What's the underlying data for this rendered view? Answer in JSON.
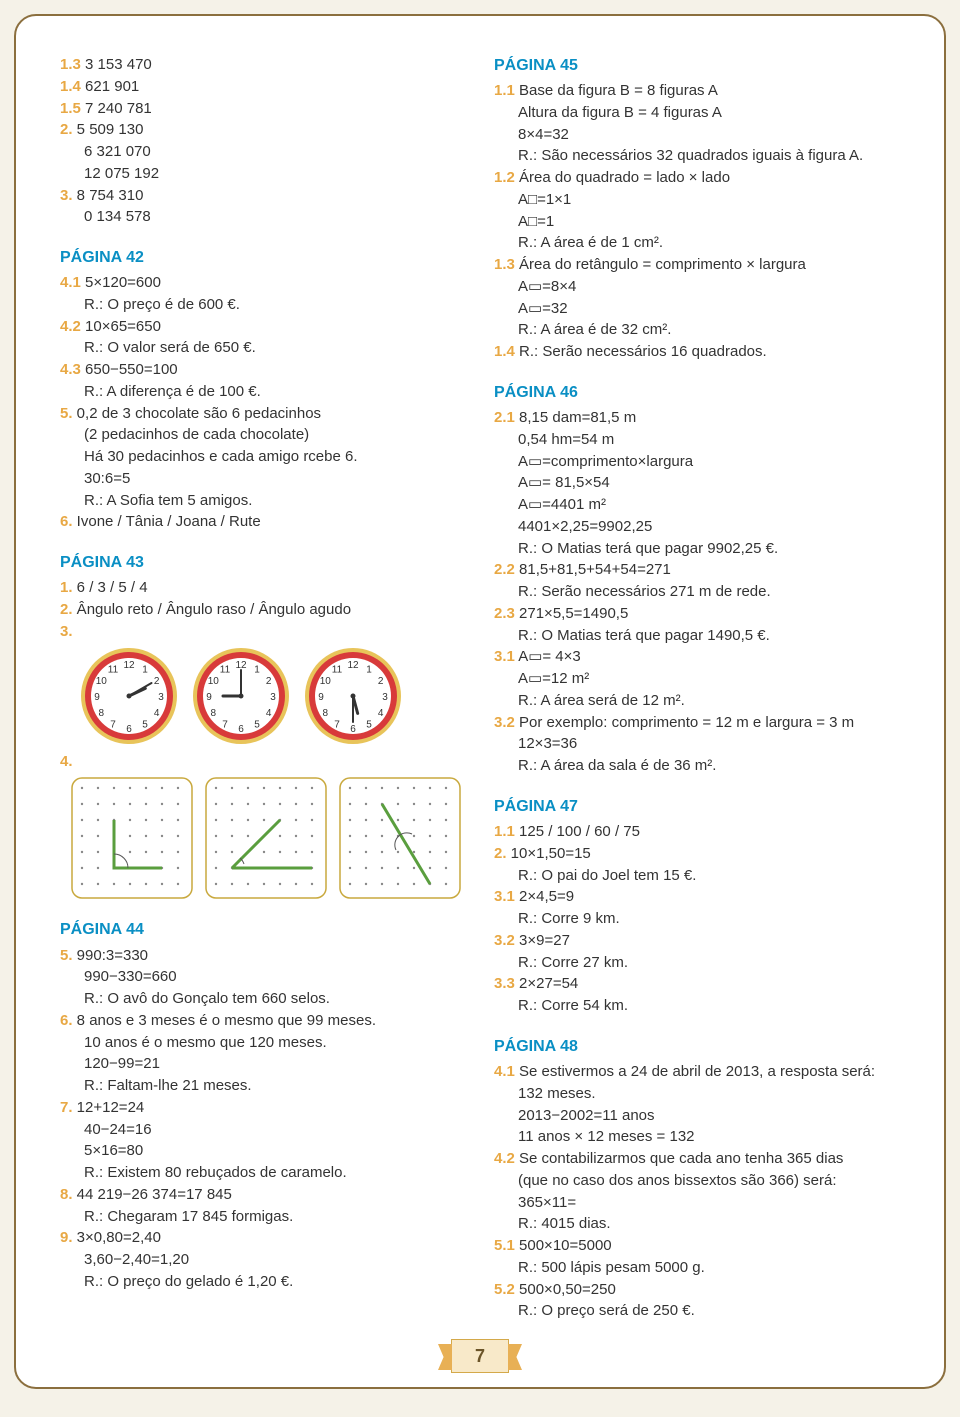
{
  "pageNumber": "7",
  "colors": {
    "accent": "#e8a844",
    "heading": "#0a8fc4",
    "text": "#333333",
    "border": "#8b6f3e",
    "bg": "#ffffff",
    "clockRim": "#e8c45a",
    "clockRing": "#d83a3a",
    "clockFace": "#ffffff",
    "clockHand": "#333333",
    "gridBorder": "#c9a93e",
    "gridDot": "#888888",
    "angleLine": "#5a9e3e",
    "angleArc": "#555555"
  },
  "left": {
    "top": [
      {
        "n": "1.3",
        "t": "3 153 470"
      },
      {
        "n": "1.4",
        "t": "621 901"
      },
      {
        "n": "1.5",
        "t": "7 240 781"
      },
      {
        "n": "2.",
        "t": "5 509 130"
      },
      {
        "sub": "6 321 070"
      },
      {
        "sub": "12 075 192"
      },
      {
        "n": "3.",
        "t": "8 754 310"
      },
      {
        "sub": "0 134 578"
      }
    ],
    "p42": {
      "title": "PÁGINA 42",
      "items": [
        {
          "n": "4.1",
          "t": "5×120=600"
        },
        {
          "sub": "R.: O preço é de 600 €."
        },
        {
          "n": "4.2",
          "t": "10×65=650"
        },
        {
          "sub": "R.: O valor será de 650 €."
        },
        {
          "n": "4.3",
          "t": "650−550=100"
        },
        {
          "sub": "R.: A diferença é de 100 €."
        },
        {
          "n": "5.",
          "t": "0,2 de 3 chocolate são 6 pedacinhos"
        },
        {
          "sub": "(2 pedacinhos de cada chocolate)"
        },
        {
          "sub": "Há 30 pedacinhos e cada amigo rcebe 6."
        },
        {
          "sub": "30:6=5"
        },
        {
          "sub": "R.: A Sofia tem 5 amigos."
        },
        {
          "n": "6.",
          "t": "Ivone / Tânia / Joana / Rute"
        }
      ]
    },
    "p43": {
      "title": "PÁGINA 43",
      "items": [
        {
          "n": "1.",
          "t": "6 / 3 / 5 / 4"
        },
        {
          "n": "2.",
          "t": "Ângulo reto / Ângulo raso / Ângulo agudo"
        },
        {
          "n": "3.",
          "t": ""
        }
      ],
      "after": [
        {
          "n": "4.",
          "t": ""
        }
      ]
    },
    "clocks": [
      {
        "hour": 2,
        "min": 10
      },
      {
        "hour": 9,
        "min": 0
      },
      {
        "hour": 5,
        "min": 30
      }
    ],
    "grids": [
      {
        "type": "right",
        "pts": [
          [
            2,
            2
          ],
          [
            2,
            5
          ],
          [
            5,
            5
          ]
        ],
        "arc": [
          2,
          5,
          90,
          0
        ]
      },
      {
        "type": "acute",
        "pts": [
          [
            1,
            5
          ],
          [
            4,
            2
          ],
          [
            4,
            2
          ],
          [
            6,
            5
          ]
        ],
        "arc": [
          4,
          2,
          135,
          45
        ],
        "corner": [
          1,
          5
        ]
      },
      {
        "type": "line",
        "pts": [
          [
            2,
            1
          ],
          [
            5,
            6
          ]
        ],
        "arc": [
          3.5,
          3.5,
          110,
          290
        ]
      }
    ],
    "p44": {
      "title": "PÁGINA 44",
      "items": [
        {
          "n": "5.",
          "t": "990:3=330"
        },
        {
          "sub": "990−330=660"
        },
        {
          "sub": "R.: O avô do Gonçalo tem 660 selos."
        },
        {
          "n": "6.",
          "t": "8 anos e 3 meses é o mesmo que 99 meses."
        },
        {
          "sub": "10 anos é o mesmo que 120 meses."
        },
        {
          "sub": "120−99=21"
        },
        {
          "sub": "R.: Faltam-lhe 21 meses."
        },
        {
          "n": "7.",
          "t": "12+12=24"
        },
        {
          "sub": "40−24=16"
        },
        {
          "sub": "5×16=80"
        },
        {
          "sub": "R.: Existem 80 rebuçados de caramelo."
        },
        {
          "n": "8.",
          "t": "44 219−26 374=17 845"
        },
        {
          "sub": "R.: Chegaram 17 845 formigas."
        },
        {
          "n": "9.",
          "t": "3×0,80=2,40"
        },
        {
          "sub": "3,60−2,40=1,20"
        },
        {
          "sub": "R.: O preço do gelado é 1,20 €."
        }
      ]
    }
  },
  "right": {
    "p45": {
      "title": "PÁGINA 45",
      "items": [
        {
          "n": "1.1",
          "t": "Base da figura B = 8 figuras A"
        },
        {
          "sub": "Altura da figura B = 4 figuras A"
        },
        {
          "sub": "8×4=32"
        },
        {
          "sub": "R.: São necessários 32 quadrados iguais à figura A."
        },
        {
          "n": "1.2",
          "t": "Área do quadrado = lado × lado"
        },
        {
          "sub": "A□=1×1"
        },
        {
          "sub": "A□=1"
        },
        {
          "sub": "R.: A área é de 1 cm²."
        },
        {
          "n": "1.3",
          "t": "Área do retângulo = comprimento × largura"
        },
        {
          "sub": "A▭=8×4"
        },
        {
          "sub": "A▭=32"
        },
        {
          "sub": "R.: A área é de 32 cm²."
        },
        {
          "n": "1.4",
          "t": "R.: Serão necessários 16 quadrados."
        }
      ]
    },
    "p46": {
      "title": "PÁGINA 46",
      "items": [
        {
          "n": "2.1",
          "t": "8,15 dam=81,5 m"
        },
        {
          "sub": "0,54 hm=54 m"
        },
        {
          "sub": "A▭=comprimento×largura"
        },
        {
          "sub": "A▭= 81,5×54"
        },
        {
          "sub": "A▭=4401 m²"
        },
        {
          "sub": "4401×2,25=9902,25"
        },
        {
          "sub": "R.: O Matias terá que pagar 9902,25 €."
        },
        {
          "n": "2.2",
          "t": "81,5+81,5+54+54=271"
        },
        {
          "sub": "R.: Serão necessários 271 m de rede."
        },
        {
          "n": "2.3",
          "t": "271×5,5=1490,5"
        },
        {
          "sub": "R.: O Matias terá que pagar 1490,5 €."
        },
        {
          "n": "3.1",
          "t": "A▭= 4×3"
        },
        {
          "sub": "A▭=12 m²"
        },
        {
          "sub": "R.: A área será de 12 m²."
        },
        {
          "n": "3.2",
          "t": "Por exemplo: comprimento = 12 m e largura = 3 m"
        },
        {
          "sub": "12×3=36"
        },
        {
          "sub": "R.: A área da sala é de 36 m²."
        }
      ]
    },
    "p47": {
      "title": "PÁGINA 47",
      "items": [
        {
          "n": "1.1",
          "t": "125 / 100 / 60 / 75"
        },
        {
          "n": "2.",
          "t": "10×1,50=15"
        },
        {
          "sub": "R.: O pai do Joel tem 15 €."
        },
        {
          "n": "3.1",
          "t": "2×4,5=9"
        },
        {
          "sub": "R.: Corre 9 km."
        },
        {
          "n": "3.2",
          "t": "3×9=27"
        },
        {
          "sub": "R.: Corre 27 km."
        },
        {
          "n": "3.3",
          "t": "2×27=54"
        },
        {
          "sub": "R.: Corre 54 km."
        }
      ]
    },
    "p48": {
      "title": "PÁGINA 48",
      "items": [
        {
          "n": "4.1",
          "t": "Se estivermos a 24 de abril de 2013, a resposta será:"
        },
        {
          "sub": "132 meses."
        },
        {
          "sub": "2013−2002=11 anos"
        },
        {
          "sub": "11 anos × 12 meses = 132"
        },
        {
          "n": "4.2",
          "t": "Se contabilizarmos que cada ano tenha 365 dias"
        },
        {
          "sub": "(que no caso dos anos bissextos são 366) será:"
        },
        {
          "sub": "365×11="
        },
        {
          "sub": "R.: 4015 dias."
        },
        {
          "n": "5.1",
          "t": "500×10=5000"
        },
        {
          "sub": "R.: 500 lápis pesam 5000 g."
        },
        {
          "n": "5.2",
          "t": "500×0,50=250"
        },
        {
          "sub": "R.: O preço será de 250 €."
        }
      ]
    }
  }
}
